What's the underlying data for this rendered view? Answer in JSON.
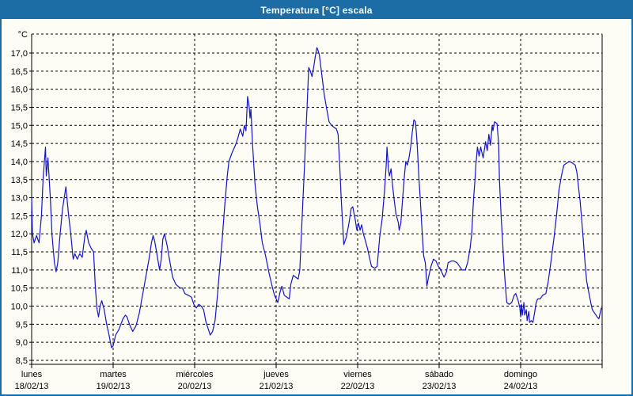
{
  "window": {
    "title": "Temperatura [°C] escala",
    "title_bar_color": "#1c6da6",
    "background_color": "#fdfdf5"
  },
  "chart_data": {
    "type": "line",
    "title": "Temperatura [°C] escala",
    "unit_label": "°C",
    "line_color": "#1414c8",
    "grid_color": "#000000",
    "grid": "dashed",
    "legend_position": "none",
    "y_axis": {
      "min": 8.5,
      "max": 17.0,
      "step": 0.5,
      "tick_labels": [
        "8,5",
        "9,0",
        "9,5",
        "10,0",
        "10,5",
        "11,0",
        "11,5",
        "12,0",
        "12,5",
        "13,0",
        "13,5",
        "14,0",
        "14,5",
        "15,0",
        "15,5",
        "16,0",
        "16,5",
        "17,0"
      ]
    },
    "x_axis": {
      "span_days": 7,
      "days": [
        {
          "name": "lunes",
          "date": "18/02/13"
        },
        {
          "name": "martes",
          "date": "19/02/13"
        },
        {
          "name": "miércoles",
          "date": "20/02/13"
        },
        {
          "name": "jueves",
          "date": "21/02/13"
        },
        {
          "name": "viernes",
          "date": "22/02/13"
        },
        {
          "name": "sábado",
          "date": "23/02/13"
        },
        {
          "name": "domingo",
          "date": "24/02/13"
        }
      ]
    },
    "series": [
      {
        "name": "Temperatura",
        "points": [
          [
            0,
            13.0
          ],
          [
            0.01,
            12.0
          ],
          [
            0.03,
            11.75
          ],
          [
            0.06,
            11.95
          ],
          [
            0.09,
            11.75
          ],
          [
            0.12,
            12.5
          ],
          [
            0.14,
            13.5
          ],
          [
            0.17,
            14.4
          ],
          [
            0.18,
            13.6
          ],
          [
            0.2,
            14.1
          ],
          [
            0.23,
            12.95
          ],
          [
            0.25,
            11.95
          ],
          [
            0.28,
            11.2
          ],
          [
            0.3,
            10.95
          ],
          [
            0.32,
            11.2
          ],
          [
            0.35,
            12.0
          ],
          [
            0.38,
            12.7
          ],
          [
            0.42,
            13.3
          ],
          [
            0.45,
            12.6
          ],
          [
            0.48,
            12.0
          ],
          [
            0.51,
            11.3
          ],
          [
            0.53,
            11.45
          ],
          [
            0.56,
            11.3
          ],
          [
            0.59,
            11.45
          ],
          [
            0.62,
            11.35
          ],
          [
            0.65,
            11.9
          ],
          [
            0.67,
            12.1
          ],
          [
            0.7,
            11.75
          ],
          [
            0.73,
            11.6
          ],
          [
            0.76,
            11.5
          ],
          [
            0.78,
            10.6
          ],
          [
            0.8,
            9.95
          ],
          [
            0.82,
            9.7
          ],
          [
            0.84,
            10.0
          ],
          [
            0.86,
            10.15
          ],
          [
            0.89,
            9.9
          ],
          [
            0.92,
            9.5
          ],
          [
            0.95,
            9.2
          ],
          [
            0.98,
            8.85
          ],
          [
            1.0,
            8.9
          ],
          [
            1.03,
            9.2
          ],
          [
            1.07,
            9.35
          ],
          [
            1.12,
            9.65
          ],
          [
            1.15,
            9.75
          ],
          [
            1.17,
            9.7
          ],
          [
            1.2,
            9.5
          ],
          [
            1.24,
            9.3
          ],
          [
            1.28,
            9.45
          ],
          [
            1.32,
            9.8
          ],
          [
            1.36,
            10.3
          ],
          [
            1.4,
            10.8
          ],
          [
            1.44,
            11.3
          ],
          [
            1.47,
            11.75
          ],
          [
            1.49,
            11.95
          ],
          [
            1.51,
            11.8
          ],
          [
            1.54,
            11.4
          ],
          [
            1.57,
            11.0
          ],
          [
            1.59,
            11.3
          ],
          [
            1.61,
            11.85
          ],
          [
            1.63,
            12.0
          ],
          [
            1.66,
            11.7
          ],
          [
            1.69,
            11.3
          ],
          [
            1.73,
            10.8
          ],
          [
            1.77,
            10.6
          ],
          [
            1.82,
            10.5
          ],
          [
            1.85,
            10.5
          ],
          [
            1.88,
            10.35
          ],
          [
            1.92,
            10.3
          ],
          [
            1.96,
            10.25
          ],
          [
            1.99,
            10.05
          ],
          [
            2.02,
            9.95
          ],
          [
            2.05,
            10.05
          ],
          [
            2.08,
            10.0
          ],
          [
            2.11,
            9.9
          ],
          [
            2.14,
            9.55
          ],
          [
            2.17,
            9.35
          ],
          [
            2.19,
            9.2
          ],
          [
            2.22,
            9.3
          ],
          [
            2.25,
            9.6
          ],
          [
            2.28,
            10.3
          ],
          [
            2.31,
            11.1
          ],
          [
            2.34,
            11.9
          ],
          [
            2.37,
            12.8
          ],
          [
            2.4,
            13.6
          ],
          [
            2.42,
            14.0
          ],
          [
            2.46,
            14.25
          ],
          [
            2.5,
            14.45
          ],
          [
            2.53,
            14.65
          ],
          [
            2.56,
            14.9
          ],
          [
            2.59,
            14.7
          ],
          [
            2.61,
            15.0
          ],
          [
            2.63,
            14.85
          ],
          [
            2.65,
            15.8
          ],
          [
            2.67,
            15.5
          ],
          [
            2.68,
            15.2
          ],
          [
            2.69,
            15.45
          ],
          [
            2.71,
            14.5
          ],
          [
            2.74,
            13.4
          ],
          [
            2.77,
            12.75
          ],
          [
            2.8,
            12.3
          ],
          [
            2.83,
            11.75
          ],
          [
            2.87,
            11.4
          ],
          [
            2.91,
            10.95
          ],
          [
            2.95,
            10.55
          ],
          [
            2.98,
            10.3
          ],
          [
            3.02,
            10.1
          ],
          [
            3.05,
            10.4
          ],
          [
            3.07,
            10.55
          ],
          [
            3.1,
            10.3
          ],
          [
            3.13,
            10.25
          ],
          [
            3.16,
            10.2
          ],
          [
            3.18,
            10.6
          ],
          [
            3.21,
            10.85
          ],
          [
            3.24,
            10.8
          ],
          [
            3.27,
            10.75
          ],
          [
            3.29,
            11.0
          ],
          [
            3.31,
            12.0
          ],
          [
            3.33,
            13.0
          ],
          [
            3.35,
            14.0
          ],
          [
            3.36,
            14.6
          ],
          [
            3.38,
            15.5
          ],
          [
            3.39,
            16.1
          ],
          [
            3.4,
            16.6
          ],
          [
            3.42,
            16.5
          ],
          [
            3.44,
            16.35
          ],
          [
            3.46,
            16.6
          ],
          [
            3.48,
            16.9
          ],
          [
            3.5,
            17.15
          ],
          [
            3.51,
            17.1
          ],
          [
            3.53,
            16.95
          ],
          [
            3.56,
            16.4
          ],
          [
            3.59,
            15.85
          ],
          [
            3.62,
            15.45
          ],
          [
            3.65,
            15.1
          ],
          [
            3.68,
            15.0
          ],
          [
            3.71,
            14.95
          ],
          [
            3.74,
            14.9
          ],
          [
            3.76,
            14.75
          ],
          [
            3.78,
            13.9
          ],
          [
            3.8,
            12.9
          ],
          [
            3.82,
            12.1
          ],
          [
            3.83,
            11.7
          ],
          [
            3.86,
            11.9
          ],
          [
            3.89,
            12.25
          ],
          [
            3.92,
            12.7
          ],
          [
            3.94,
            12.75
          ],
          [
            3.97,
            12.4
          ],
          [
            3.99,
            12.1
          ],
          [
            4.01,
            12.3
          ],
          [
            4.03,
            12.1
          ],
          [
            4.05,
            12.25
          ],
          [
            4.07,
            12.0
          ],
          [
            4.09,
            11.85
          ],
          [
            4.12,
            11.6
          ],
          [
            4.15,
            11.3
          ],
          [
            4.17,
            11.1
          ],
          [
            4.21,
            11.05
          ],
          [
            4.24,
            11.1
          ],
          [
            4.27,
            11.9
          ],
          [
            4.3,
            12.4
          ],
          [
            4.33,
            13.2
          ],
          [
            4.35,
            13.9
          ],
          [
            4.36,
            14.4
          ],
          [
            4.38,
            13.75
          ],
          [
            4.39,
            13.6
          ],
          [
            4.41,
            13.8
          ],
          [
            4.43,
            13.3
          ],
          [
            4.45,
            12.9
          ],
          [
            4.47,
            12.55
          ],
          [
            4.5,
            12.3
          ],
          [
            4.51,
            12.1
          ],
          [
            4.53,
            12.3
          ],
          [
            4.55,
            12.9
          ],
          [
            4.57,
            13.5
          ],
          [
            4.59,
            14.0
          ],
          [
            4.61,
            13.9
          ],
          [
            4.63,
            14.1
          ],
          [
            4.65,
            14.4
          ],
          [
            4.67,
            14.8
          ],
          [
            4.69,
            15.15
          ],
          [
            4.71,
            15.1
          ],
          [
            4.73,
            14.5
          ],
          [
            4.75,
            13.6
          ],
          [
            4.77,
            12.9
          ],
          [
            4.79,
            12.1
          ],
          [
            4.81,
            11.4
          ],
          [
            4.83,
            11.2
          ],
          [
            4.84,
            10.9
          ],
          [
            4.85,
            10.55
          ],
          [
            4.87,
            10.8
          ],
          [
            4.9,
            11.1
          ],
          [
            4.93,
            11.3
          ],
          [
            4.96,
            11.25
          ],
          [
            4.99,
            11.1
          ],
          [
            5.01,
            11.05
          ],
          [
            5.03,
            10.95
          ],
          [
            5.06,
            10.8
          ],
          [
            5.09,
            10.95
          ],
          [
            5.11,
            11.2
          ],
          [
            5.15,
            11.25
          ],
          [
            5.18,
            11.25
          ],
          [
            5.22,
            11.2
          ],
          [
            5.25,
            11.1
          ],
          [
            5.28,
            11.0
          ],
          [
            5.32,
            11.0
          ],
          [
            5.35,
            11.2
          ],
          [
            5.38,
            11.6
          ],
          [
            5.4,
            12.0
          ],
          [
            5.42,
            12.9
          ],
          [
            5.44,
            13.5
          ],
          [
            5.45,
            13.9
          ],
          [
            5.47,
            14.4
          ],
          [
            5.49,
            14.15
          ],
          [
            5.51,
            14.4
          ],
          [
            5.54,
            14.1
          ],
          [
            5.57,
            14.55
          ],
          [
            5.59,
            14.3
          ],
          [
            5.61,
            14.75
          ],
          [
            5.63,
            14.45
          ],
          [
            5.65,
            15.0
          ],
          [
            5.66,
            14.85
          ],
          [
            5.68,
            15.1
          ],
          [
            5.71,
            15.05
          ],
          [
            5.73,
            14.5
          ],
          [
            5.74,
            13.5
          ],
          [
            5.76,
            12.5
          ],
          [
            5.78,
            11.75
          ],
          [
            5.8,
            10.95
          ],
          [
            5.82,
            10.35
          ],
          [
            5.83,
            10.1
          ],
          [
            5.86,
            10.05
          ],
          [
            5.89,
            10.1
          ],
          [
            5.92,
            10.3
          ],
          [
            5.94,
            10.35
          ],
          [
            5.97,
            10.15
          ],
          [
            5.99,
            9.95
          ],
          [
            6.0,
            9.7
          ],
          [
            6.01,
            10.05
          ],
          [
            6.02,
            9.75
          ],
          [
            6.04,
            10.1
          ],
          [
            6.05,
            9.75
          ],
          [
            6.07,
            9.9
          ],
          [
            6.08,
            9.6
          ],
          [
            6.1,
            9.85
          ],
          [
            6.11,
            9.55
          ],
          [
            6.13,
            9.6
          ],
          [
            6.15,
            9.55
          ],
          [
            6.17,
            9.8
          ],
          [
            6.19,
            10.1
          ],
          [
            6.21,
            10.2
          ],
          [
            6.24,
            10.2
          ],
          [
            6.27,
            10.3
          ],
          [
            6.31,
            10.35
          ],
          [
            6.34,
            10.7
          ],
          [
            6.37,
            11.2
          ],
          [
            6.41,
            11.9
          ],
          [
            6.44,
            12.5
          ],
          [
            6.47,
            13.2
          ],
          [
            6.5,
            13.6
          ],
          [
            6.53,
            13.9
          ],
          [
            6.56,
            13.95
          ],
          [
            6.6,
            14.0
          ],
          [
            6.64,
            13.95
          ],
          [
            6.67,
            13.9
          ],
          [
            6.69,
            13.7
          ],
          [
            6.71,
            13.3
          ],
          [
            6.73,
            12.9
          ],
          [
            6.75,
            12.35
          ],
          [
            6.77,
            11.8
          ],
          [
            6.79,
            11.2
          ],
          [
            6.81,
            10.7
          ],
          [
            6.83,
            10.45
          ],
          [
            6.86,
            10.1
          ],
          [
            6.88,
            9.9
          ],
          [
            6.91,
            9.8
          ],
          [
            6.94,
            9.7
          ],
          [
            6.96,
            9.65
          ],
          [
            6.98,
            9.85
          ],
          [
            6.99,
            9.95
          ]
        ]
      }
    ]
  }
}
